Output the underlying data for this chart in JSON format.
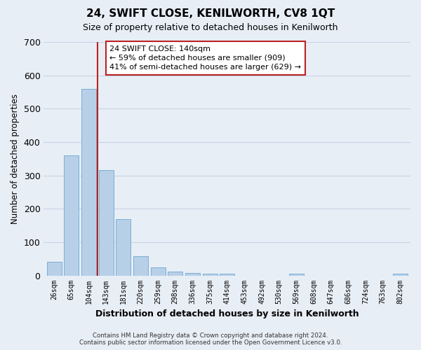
{
  "title": "24, SWIFT CLOSE, KENILWORTH, CV8 1QT",
  "subtitle": "Size of property relative to detached houses in Kenilworth",
  "xlabel": "Distribution of detached houses by size in Kenilworth",
  "ylabel": "Number of detached properties",
  "footer_line1": "Contains HM Land Registry data © Crown copyright and database right 2024.",
  "footer_line2": "Contains public sector information licensed under the Open Government Licence v3.0.",
  "categories": [
    "26sqm",
    "65sqm",
    "104sqm",
    "143sqm",
    "181sqm",
    "220sqm",
    "259sqm",
    "298sqm",
    "336sqm",
    "375sqm",
    "414sqm",
    "453sqm",
    "492sqm",
    "530sqm",
    "569sqm",
    "608sqm",
    "647sqm",
    "686sqm",
    "724sqm",
    "763sqm",
    "802sqm"
  ],
  "values": [
    40,
    360,
    560,
    315,
    170,
    58,
    25,
    12,
    7,
    5,
    5,
    0,
    0,
    0,
    5,
    0,
    0,
    0,
    0,
    0,
    5
  ],
  "bar_color": "#b8cfe8",
  "bar_edge_color": "#7aaed4",
  "grid_color": "#c8d4e4",
  "background_color": "#e8eef6",
  "vline_position": 2.5,
  "vline_color": "#bb2222",
  "annotation_text": "24 SWIFT CLOSE: 140sqm\n← 59% of detached houses are smaller (909)\n41% of semi-detached houses are larger (629) →",
  "annotation_box_color": "#ffffff",
  "annotation_box_edge": "#bb2222",
  "ylim": [
    0,
    700
  ],
  "yticks": [
    0,
    100,
    200,
    300,
    400,
    500,
    600,
    700
  ]
}
